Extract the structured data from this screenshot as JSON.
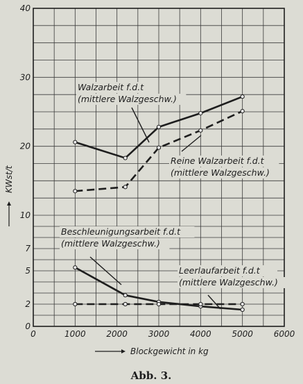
{
  "chart_data": {
    "type": "line",
    "xlabel": "Blockgewicht in kg",
    "ylabel": "KWst/t",
    "caption": "Abb. 3.",
    "xlim": [
      0,
      6000
    ],
    "ylim": [
      0,
      40
    ],
    "y_scale": "piecewise: 0-10 expanded, 10-40 linear",
    "x_ticks": [
      "0",
      "1000",
      "2000",
      "3000",
      "4000",
      "5000",
      "6000"
    ],
    "y_ticks": [
      "0",
      "2",
      "5",
      "7",
      "10",
      "20",
      "30",
      "40"
    ],
    "grid": true,
    "series": [
      {
        "key": "walzarbeit",
        "style": "solid",
        "points": [
          [
            1000,
            20.6
          ],
          [
            2200,
            18.3
          ],
          [
            3000,
            22.8
          ],
          [
            4000,
            24.8
          ],
          [
            5000,
            27.2
          ]
        ],
        "annotation": [
          "Walzarbeit f.d.t",
          "(mittlere Walzgeschw.)"
        ]
      },
      {
        "key": "reine-walzarbeit",
        "style": "dashed",
        "points": [
          [
            1000,
            13.5
          ],
          [
            2200,
            14.1
          ],
          [
            3000,
            19.8
          ],
          [
            4000,
            22.3
          ],
          [
            5000,
            25.1
          ]
        ],
        "annotation": [
          "Reine Walzarbeit f.d.t",
          "(mittlere Walzgeschw.)"
        ]
      },
      {
        "key": "beschleunigungsarbeit",
        "style": "solid",
        "points": [
          [
            1000,
            5.3
          ],
          [
            2200,
            2.8
          ],
          [
            3000,
            2.2
          ],
          [
            4000,
            1.8
          ],
          [
            5000,
            1.5
          ]
        ],
        "annotation": [
          "Beschleunigungsarbeit f.d.t",
          "(mittlere Walzgeschw.)"
        ]
      },
      {
        "key": "leerlaufarbeit",
        "style": "dashed",
        "points": [
          [
            1000,
            2.0
          ],
          [
            2200,
            2.0
          ],
          [
            3000,
            2.0
          ],
          [
            4000,
            2.0
          ],
          [
            5000,
            2.0
          ]
        ],
        "annotation": [
          "Leerlaufarbeit f.d.t",
          "(mittlere Walzgeschw.)"
        ]
      }
    ]
  }
}
